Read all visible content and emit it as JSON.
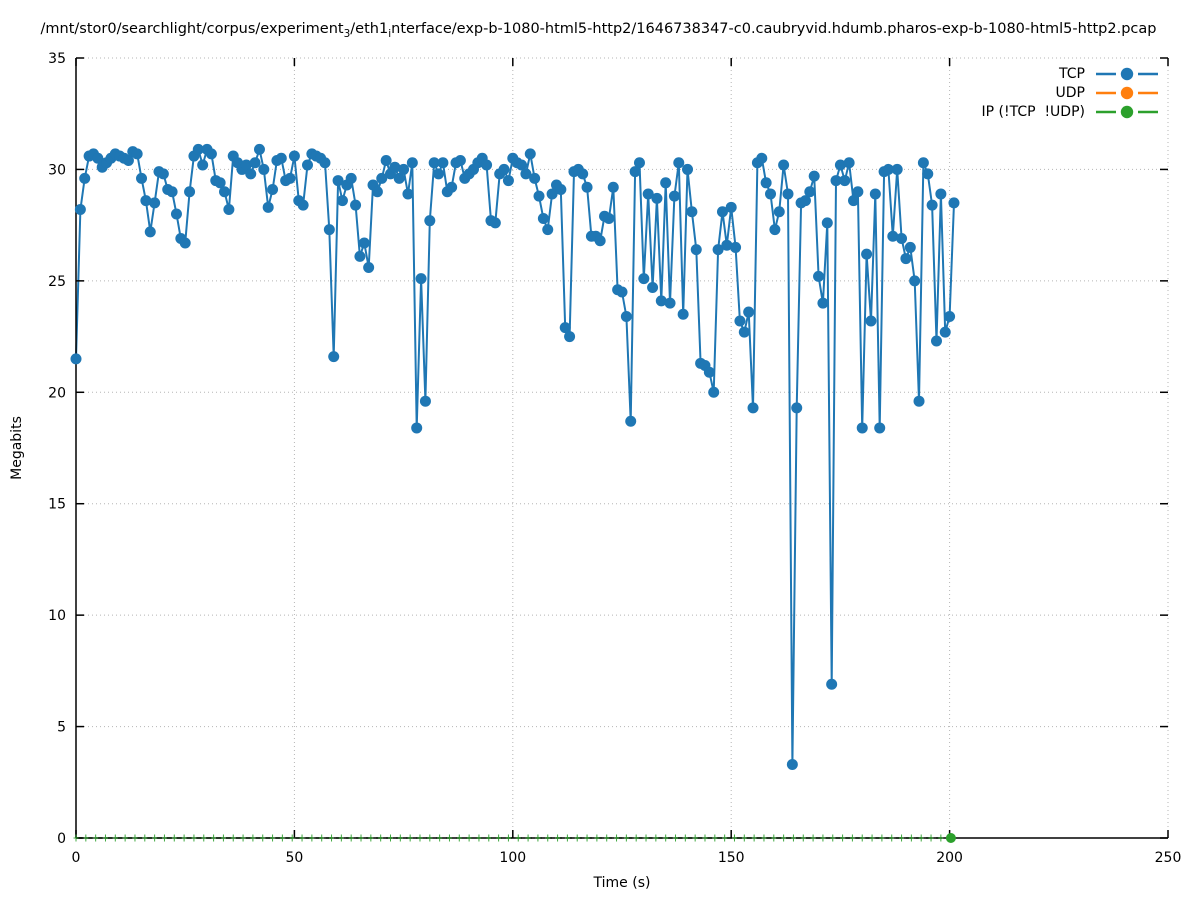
{
  "title": {
    "prefix": "/mnt/stor0/searchlight/corpus/experiment",
    "sub1": "3",
    "mid": "/eth1",
    "sub2": "i",
    "suffix": "nterface/exp-b-1080-html5-http2/1646738347-c0.caubryvid.hdumb.pharos-exp-b-1080-html5-http2.pcap"
  },
  "legend": {
    "items": [
      {
        "label": "TCP",
        "color": "#1f77b4"
      },
      {
        "label": "UDP",
        "color": "#ff7f0e"
      },
      {
        "label": "IP (!TCP  !UDP)",
        "color": "#2ca02c"
      }
    ]
  },
  "chart_data": {
    "type": "line",
    "xlabel": "Time (s)",
    "ylabel": "Megabits",
    "xlim": [
      0,
      250
    ],
    "ylim": [
      0,
      35
    ],
    "xticks": [
      {
        "v": 0,
        "label": "0"
      },
      {
        "v": 50,
        "label": "50"
      },
      {
        "v": 100,
        "label": "100"
      },
      {
        "v": 150,
        "label": "150"
      },
      {
        "v": 200,
        "label": "200"
      },
      {
        "v": 250,
        "label": "250"
      }
    ],
    "yticks": [
      {
        "v": 0,
        "label": "0"
      },
      {
        "v": 5,
        "label": "5"
      },
      {
        "v": 10,
        "label": "10"
      },
      {
        "v": 15,
        "label": "15"
      },
      {
        "v": 20,
        "label": "20"
      },
      {
        "v": 25,
        "label": "25"
      },
      {
        "v": 30,
        "label": "30"
      },
      {
        "v": 35,
        "label": "35"
      }
    ],
    "grid": true,
    "legend_position": "top-right",
    "series": [
      {
        "name": "TCP",
        "color": "#1f77b4",
        "style": "linespoints",
        "x_start": 0,
        "x_step_s": 1,
        "values": [
          21.5,
          28.2,
          29.6,
          30.6,
          30.7,
          30.5,
          30.1,
          30.3,
          30.5,
          30.7,
          30.6,
          30.5,
          30.4,
          30.8,
          30.7,
          29.6,
          28.6,
          27.2,
          28.5,
          29.9,
          29.8,
          29.1,
          29.0,
          28.0,
          26.9,
          26.7,
          29.0,
          30.6,
          30.9,
          30.2,
          30.9,
          30.7,
          29.5,
          29.4,
          29.0,
          28.2,
          30.6,
          30.3,
          30.0,
          30.2,
          29.8,
          30.3,
          30.9,
          30.0,
          28.3,
          29.1,
          30.4,
          30.5,
          29.5,
          29.6,
          30.6,
          28.6,
          28.4,
          30.2,
          30.7,
          30.6,
          30.5,
          30.3,
          27.3,
          21.6,
          29.5,
          28.6,
          29.3,
          29.6,
          28.4,
          26.1,
          26.7,
          25.6,
          29.3,
          29.0,
          29.6,
          30.4,
          29.8,
          30.1,
          29.6,
          30.0,
          28.9,
          30.3,
          18.4,
          25.1,
          19.6,
          27.7,
          30.3,
          29.8,
          30.3,
          29.0,
          29.2,
          30.3,
          30.4,
          29.6,
          29.8,
          30.0,
          30.3,
          30.5,
          30.2,
          27.7,
          27.6,
          29.8,
          30.0,
          29.5,
          30.5,
          30.3,
          30.2,
          29.8,
          30.7,
          29.6,
          28.8,
          27.8,
          27.3,
          28.9,
          29.3,
          29.1,
          22.9,
          22.5,
          29.9,
          30.0,
          29.8,
          29.2,
          27.0,
          27.0,
          26.8,
          27.9,
          27.8,
          29.2,
          24.6,
          24.5,
          23.4,
          18.7,
          29.9,
          30.3,
          25.1,
          28.9,
          24.7,
          28.7,
          24.1,
          29.4,
          24.0,
          28.8,
          30.3,
          23.5,
          30.0,
          28.1,
          26.4,
          21.3,
          21.2,
          20.9,
          20.0,
          26.4,
          28.1,
          26.6,
          28.3,
          26.5,
          23.2,
          22.7,
          23.6,
          19.3,
          30.3,
          30.5,
          29.4,
          28.9,
          27.3,
          28.1,
          30.2,
          28.9,
          3.3,
          19.3,
          28.5,
          28.6,
          29.0,
          29.7,
          25.2,
          24.0,
          27.6,
          6.9,
          29.5,
          30.2,
          29.5,
          30.3,
          28.6,
          29.0,
          18.4,
          26.2,
          23.2,
          28.9,
          18.4,
          29.9,
          30.0,
          27.0,
          30.0,
          26.9,
          26.0,
          26.5,
          25.0,
          19.6,
          30.3,
          29.8,
          28.4,
          22.3,
          28.9,
          22.7,
          23.4,
          28.5
        ]
      },
      {
        "name": "UDP",
        "color": "#ff7f0e",
        "style": "linespoints",
        "values": []
      },
      {
        "name": "IP (!TCP  !UDP)",
        "color": "#2ca02c",
        "style": "linespoints",
        "constant_value": 0,
        "x_start": 0,
        "x_end": 200.3,
        "marker_step_s": 2.25,
        "end_point_x": 200.3
      }
    ]
  }
}
